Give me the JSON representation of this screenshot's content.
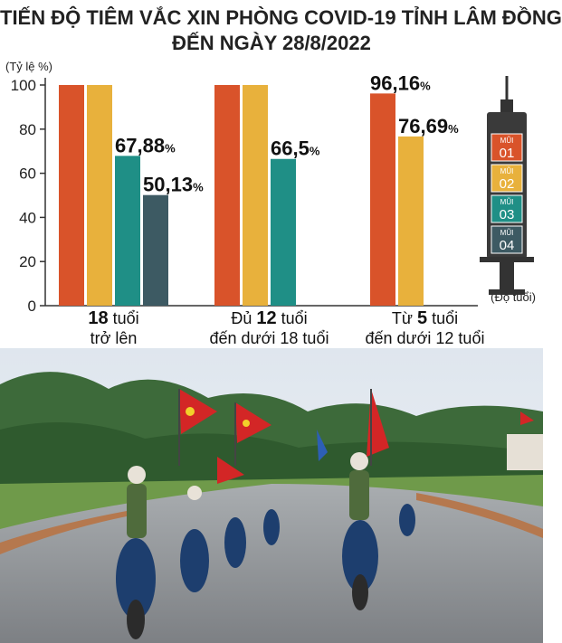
{
  "title_line1": "TIẾN ĐỘ TIÊM VẮC XIN PHÒNG COVID-19 TỈNH LÂM ĐỒNG",
  "title_line2": "ĐẾN NGÀY 28/8/2022",
  "colors": {
    "dose1": "#d9532a",
    "dose2": "#e8b13c",
    "dose3": "#1f8f86",
    "dose4": "#3d5a63"
  },
  "syringe": {
    "dose_word": "MŨI",
    "doses": [
      "01",
      "02",
      "03",
      "04"
    ]
  },
  "chart_data": {
    "type": "bar",
    "ylabel": "(Tỷ lệ %)",
    "xlabel": "(Độ tuổi)",
    "ylim": [
      0,
      100
    ],
    "yticks": [
      0,
      20,
      40,
      60,
      80,
      100
    ],
    "grid": false,
    "categories": [
      {
        "pre": "",
        "bold": "18",
        "post": " tuổi",
        "line2": "trở lên"
      },
      {
        "pre": "Đủ ",
        "bold": "12",
        "post": " tuổi",
        "line2": "đến dưới 18 tuổi"
      },
      {
        "pre": "Từ ",
        "bold": "5",
        "post": " tuổi",
        "line2": "đến dưới 12 tuổi"
      }
    ],
    "groups": [
      {
        "bars": [
          {
            "dose": "01",
            "value": 100,
            "label": ""
          },
          {
            "dose": "02",
            "value": 100,
            "label": ""
          },
          {
            "dose": "03",
            "value": 67.88,
            "label": "67,88"
          },
          {
            "dose": "04",
            "value": 50.13,
            "label": "50,13"
          }
        ]
      },
      {
        "bars": [
          {
            "dose": "01",
            "value": 100,
            "label": ""
          },
          {
            "dose": "02",
            "value": 100,
            "label": ""
          },
          {
            "dose": "03",
            "value": 66.5,
            "label": "66,5"
          }
        ]
      },
      {
        "bars": [
          {
            "dose": "01",
            "value": 96.16,
            "label": "96,16"
          },
          {
            "dose": "02",
            "value": 76.69,
            "label": "76,69"
          }
        ]
      }
    ],
    "unit_suffix": "%"
  }
}
